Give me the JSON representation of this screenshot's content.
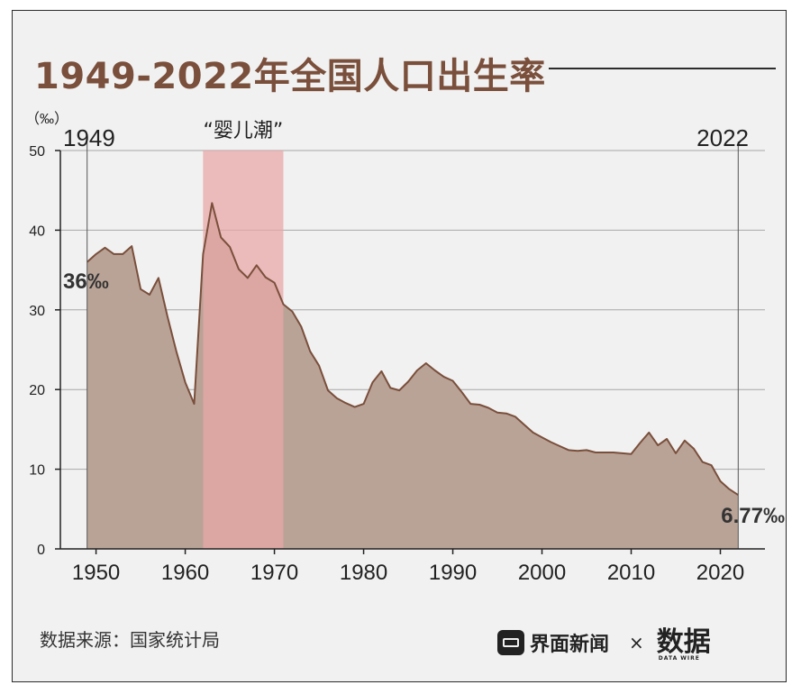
{
  "title": "1949-2022年全国人口出生率",
  "source": "数据来源：国家统计局",
  "branding": {
    "name": "界面新闻",
    "separator": "×",
    "logo": "数据",
    "logo_sub": "DATA WIRE"
  },
  "colors": {
    "area": "#b9a397",
    "line": "#7a4f3b",
    "highlight": "#e8a7a7",
    "title": "#7a4f3b",
    "text": "#333333"
  },
  "chart_data": {
    "type": "area",
    "title": "1949-2022年全国人口出生率",
    "ylabel": "（‰）",
    "xlabel": "",
    "ylim": [
      0,
      50
    ],
    "yticks": [
      "0",
      "10",
      "20",
      "30",
      "40",
      "50"
    ],
    "xticks": [
      "1950",
      "1960",
      "1970",
      "1980",
      "1990",
      "2000",
      "2010",
      "2020"
    ],
    "grid": true,
    "start_label": "1949",
    "end_label": "2022",
    "highlight": {
      "label": "“婴儿潮”",
      "from": 1962,
      "to": 1971
    },
    "annotations": {
      "start": "36‰",
      "end": "6.77‰"
    },
    "x": [
      1949,
      1950,
      1951,
      1952,
      1953,
      1954,
      1955,
      1956,
      1957,
      1958,
      1959,
      1960,
      1961,
      1962,
      1963,
      1964,
      1965,
      1966,
      1967,
      1968,
      1969,
      1970,
      1971,
      1972,
      1973,
      1974,
      1975,
      1976,
      1977,
      1978,
      1979,
      1980,
      1981,
      1982,
      1983,
      1984,
      1985,
      1986,
      1987,
      1988,
      1989,
      1990,
      1991,
      1992,
      1993,
      1994,
      1995,
      1996,
      1997,
      1998,
      1999,
      2000,
      2001,
      2002,
      2003,
      2004,
      2005,
      2006,
      2007,
      2008,
      2009,
      2010,
      2011,
      2012,
      2013,
      2014,
      2015,
      2016,
      2017,
      2018,
      2019,
      2020,
      2021,
      2022
    ],
    "values": [
      36.0,
      37.0,
      37.8,
      37.0,
      37.0,
      38.0,
      32.6,
      31.9,
      34.0,
      29.2,
      24.8,
      20.9,
      18.2,
      37.0,
      43.4,
      39.1,
      37.9,
      35.1,
      34.0,
      35.6,
      34.1,
      33.4,
      30.7,
      29.8,
      27.9,
      24.8,
      23.0,
      19.9,
      18.9,
      18.3,
      17.8,
      18.2,
      20.9,
      22.3,
      20.2,
      19.9,
      21.0,
      22.4,
      23.3,
      22.4,
      21.6,
      21.1,
      19.7,
      18.2,
      18.1,
      17.7,
      17.1,
      17.0,
      16.6,
      15.6,
      14.6,
      14.0,
      13.4,
      12.9,
      12.4,
      12.3,
      12.4,
      12.1,
      12.1,
      12.1,
      12.0,
      11.9,
      13.3,
      14.6,
      13.0,
      13.8,
      12.0,
      13.6,
      12.6,
      10.9,
      10.5,
      8.5,
      7.5,
      6.77
    ]
  }
}
